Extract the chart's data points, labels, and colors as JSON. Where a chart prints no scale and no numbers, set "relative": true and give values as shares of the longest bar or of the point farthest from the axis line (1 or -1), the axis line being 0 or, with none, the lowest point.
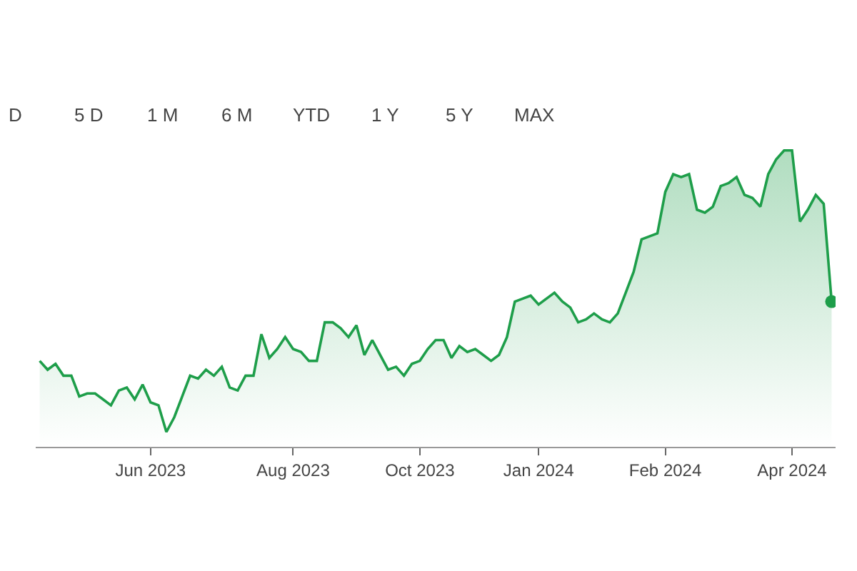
{
  "chart_data": {
    "type": "area",
    "relative": true,
    "color": "#1e9e4a",
    "marker": "none",
    "line_style": "solid",
    "annotations": [
      "D",
      "5 D",
      "1 M",
      "6 M",
      "YTD",
      "1 Y",
      "5 Y",
      "MAX"
    ],
    "categories": [
      null,
      null,
      null,
      null,
      null,
      null,
      null,
      null,
      null,
      null,
      null,
      null,
      null,
      null,
      "Jun 2023",
      null,
      null,
      null,
      null,
      null,
      null,
      null,
      null,
      null,
      null,
      null,
      null,
      null,
      null,
      null,
      null,
      null,
      "Aug 2023",
      null,
      null,
      null,
      null,
      null,
      null,
      null,
      null,
      null,
      null,
      null,
      null,
      null,
      null,
      null,
      "Oct 2023",
      null,
      null,
      null,
      null,
      null,
      null,
      null,
      null,
      null,
      null,
      null,
      null,
      null,
      null,
      "Jan 2024",
      null,
      null,
      null,
      null,
      null,
      null,
      null,
      null,
      null,
      null,
      null,
      null,
      null,
      null,
      null,
      "Feb 2024",
      null,
      null,
      null,
      null,
      null,
      null,
      null,
      null,
      null,
      null,
      null,
      null,
      null,
      null,
      null,
      "Apr 2024",
      null,
      null,
      null,
      null,
      null
    ],
    "values": [
      0.29,
      0.26,
      0.28,
      0.24,
      0.24,
      0.17,
      0.18,
      0.18,
      0.16,
      0.14,
      0.19,
      0.2,
      0.16,
      0.21,
      0.15,
      0.14,
      0.05,
      0.1,
      0.17,
      0.24,
      0.23,
      0.26,
      0.24,
      0.27,
      0.2,
      0.19,
      0.24,
      0.24,
      0.38,
      0.3,
      0.33,
      0.37,
      0.33,
      0.32,
      0.29,
      0.29,
      0.42,
      0.42,
      0.4,
      0.37,
      0.41,
      0.31,
      0.36,
      0.31,
      0.26,
      0.27,
      0.24,
      0.28,
      0.29,
      0.33,
      0.36,
      0.36,
      0.3,
      0.34,
      0.32,
      0.33,
      0.31,
      0.29,
      0.31,
      0.37,
      0.49,
      0.5,
      0.51,
      0.48,
      0.5,
      0.52,
      0.49,
      0.47,
      0.42,
      0.43,
      0.45,
      0.43,
      0.42,
      0.45,
      0.52,
      0.59,
      0.7,
      0.71,
      0.72,
      0.86,
      0.92,
      0.91,
      0.92,
      0.8,
      0.79,
      0.81,
      0.88,
      0.89,
      0.91,
      0.85,
      0.84,
      0.81,
      0.92,
      0.97,
      1.0,
      1.0,
      0.76,
      0.8,
      0.85,
      0.82,
      0.49
    ]
  }
}
